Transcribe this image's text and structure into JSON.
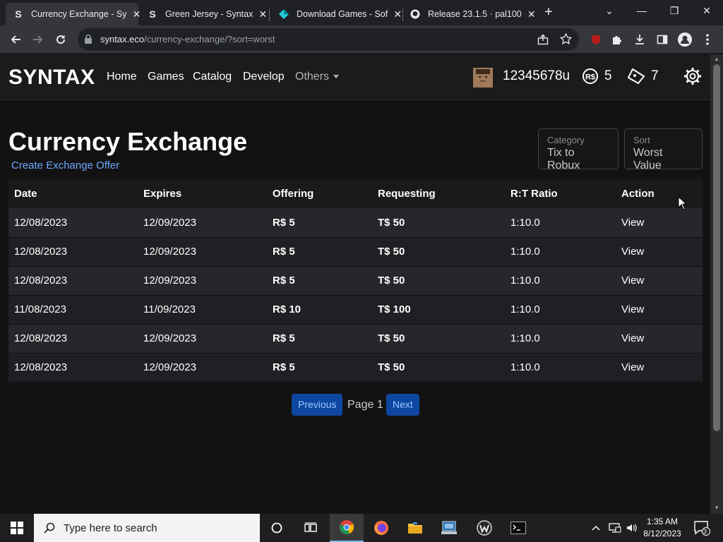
{
  "browser": {
    "tabs": [
      {
        "title": "Currency Exchange - Sy",
        "favicon": "S"
      },
      {
        "title": "Green Jersey - Syntax",
        "favicon": "S"
      },
      {
        "title": "Download Games - Sof",
        "favicon": "diamond"
      },
      {
        "title": "Release 23.1.5 · pal100",
        "favicon": "github"
      }
    ],
    "url_host": "syntax.eco",
    "url_path": "/currency-exchange/?sort=worst"
  },
  "site": {
    "logo": "SYNTAX",
    "nav": [
      "Home",
      "Games",
      "Catalog",
      "Develop"
    ],
    "nav_more": "Others",
    "username": "12345678u",
    "robux": "5",
    "tix": "7"
  },
  "page": {
    "title": "Currency Exchange",
    "create_link": "Create Exchange Offer",
    "category_label": "Category",
    "category_value": "Tix to Robux",
    "sort_label": "Sort",
    "sort_value": "Worst Value",
    "columns": [
      "Date",
      "Expires",
      "Offering",
      "Requesting",
      "R:T Ratio",
      "Action"
    ],
    "rows": [
      {
        "date": "12/08/2023",
        "expires": "12/09/2023",
        "offering": "R$ 5",
        "requesting": "T$ 50",
        "ratio": "1:10.0",
        "action": "View"
      },
      {
        "date": "12/08/2023",
        "expires": "12/09/2023",
        "offering": "R$ 5",
        "requesting": "T$ 50",
        "ratio": "1:10.0",
        "action": "View"
      },
      {
        "date": "12/08/2023",
        "expires": "12/09/2023",
        "offering": "R$ 5",
        "requesting": "T$ 50",
        "ratio": "1:10.0",
        "action": "View"
      },
      {
        "date": "11/08/2023",
        "expires": "11/09/2023",
        "offering": "R$ 10",
        "requesting": "T$ 100",
        "ratio": "1:10.0",
        "action": "View"
      },
      {
        "date": "12/08/2023",
        "expires": "12/09/2023",
        "offering": "R$ 5",
        "requesting": "T$ 50",
        "ratio": "1:10.0",
        "action": "View"
      },
      {
        "date": "12/08/2023",
        "expires": "12/09/2023",
        "offering": "R$ 5",
        "requesting": "T$ 50",
        "ratio": "1:10.0",
        "action": "View"
      }
    ],
    "pager": {
      "previous": "Previous",
      "page_text": "Page 1",
      "next": "Next"
    }
  },
  "taskbar": {
    "search_placeholder": "Type here to search",
    "time": "1:35 AM",
    "date": "8/12/2023",
    "notification_count": "3"
  },
  "colors": {
    "offering": "#22c55e",
    "requesting": "#eab308",
    "link": "#6ea8fe",
    "button": "#0d47a1"
  }
}
